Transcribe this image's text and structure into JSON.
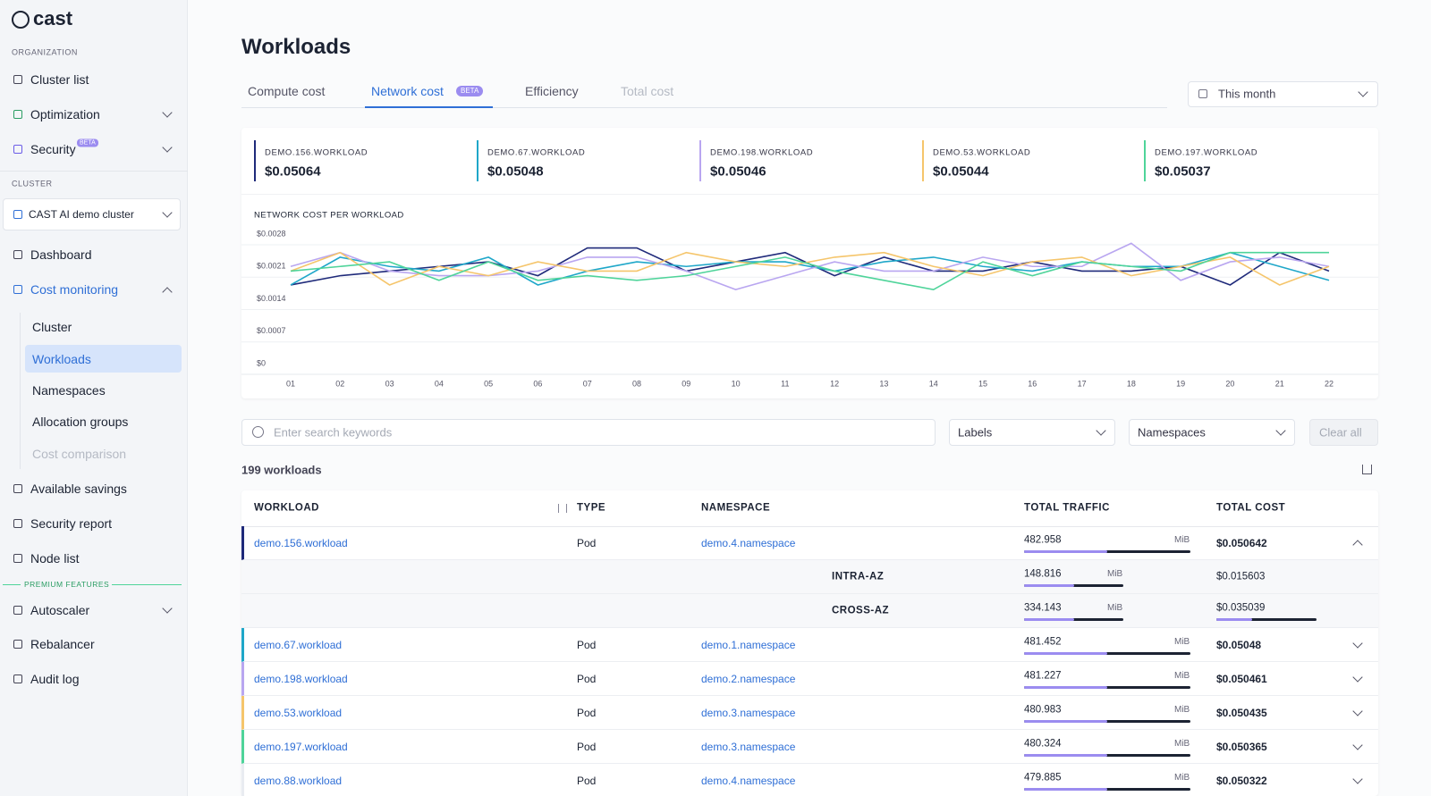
{
  "sidebar": {
    "logo": "cast",
    "organization_label": "ORGANIZATION",
    "organization_items": [
      {
        "label": "Cluster list"
      },
      {
        "label": "Optimization"
      },
      {
        "label": "Security",
        "badge": "BETA"
      }
    ],
    "cluster_label": "CLUSTER",
    "cluster_select": "CAST AI demo cluster",
    "nav_items": [
      {
        "label": "Dashboard"
      },
      {
        "label": "Cost monitoring",
        "children": [
          "Cluster",
          "Workloads",
          "Namespaces",
          "Allocation groups",
          "Cost comparison"
        ]
      },
      {
        "label": "Available savings"
      },
      {
        "label": "Security report"
      },
      {
        "label": "Node list"
      }
    ],
    "premium_label": "PREMIUM FEATURES",
    "premium_items": [
      "Autoscaler",
      "Rebalancer",
      "Audit log"
    ]
  },
  "header": {
    "title": "Workloads",
    "tabs": [
      {
        "label": "Compute cost"
      },
      {
        "label": "Network cost",
        "badge": "BETA"
      },
      {
        "label": "Efficiency"
      },
      {
        "label": "Total cost"
      }
    ],
    "date_range": "This month"
  },
  "cards": [
    {
      "name": "DEMO.156.WORKLOAD",
      "value": "$0.05064"
    },
    {
      "name": "DEMO.67.WORKLOAD",
      "value": "$0.05048"
    },
    {
      "name": "DEMO.198.WORKLOAD",
      "value": "$0.05046"
    },
    {
      "name": "DEMO.53.WORKLOAD",
      "value": "$0.05044"
    },
    {
      "name": "DEMO.197.WORKLOAD",
      "value": "$0.05037"
    }
  ],
  "chart": {
    "type": "line",
    "title": "NETWORK COST PER WORKLOAD",
    "categories": [
      "01",
      "02",
      "03",
      "04",
      "05",
      "06",
      "07",
      "08",
      "09",
      "10",
      "11",
      "12",
      "13",
      "14",
      "15",
      "16",
      "17",
      "18",
      "19",
      "20",
      "21",
      "22"
    ],
    "ylim": [
      0,
      0.0028
    ],
    "yticks": [
      {
        "value": 0,
        "label": "$0"
      },
      {
        "value": 0.0007,
        "label": "$0.0007"
      },
      {
        "value": 0.0014,
        "label": "$0.0014"
      },
      {
        "value": 0.0021,
        "label": "$0.0021"
      },
      {
        "value": 0.0028,
        "label": "$0.0028"
      }
    ],
    "grid": true,
    "series": [
      {
        "name": "demo.156.workload",
        "color": "#1f2a7a",
        "values": [
          0.0017,
          0.0019,
          0.002,
          0.0021,
          0.0022,
          0.0019,
          0.0025,
          0.0025,
          0.002,
          0.0022,
          0.0024,
          0.0019,
          0.0023,
          0.002,
          0.002,
          0.0022,
          0.002,
          0.002,
          0.0021,
          0.0017,
          0.0024,
          0.002
        ]
      },
      {
        "name": "demo.67.workload",
        "color": "#1fa7c9",
        "values": [
          0.0017,
          0.0023,
          0.0021,
          0.002,
          0.0023,
          0.0017,
          0.002,
          0.0022,
          0.0021,
          0.0022,
          0.0022,
          0.002,
          0.0022,
          0.0023,
          0.0021,
          0.002,
          0.0022,
          0.0021,
          0.0021,
          0.0024,
          0.0021,
          0.0018
        ]
      },
      {
        "name": "demo.198.workload",
        "color": "#b9a6f0",
        "values": [
          0.0021,
          0.0024,
          0.002,
          0.0019,
          0.0019,
          0.002,
          0.0023,
          0.0023,
          0.002,
          0.0016,
          0.0019,
          0.0022,
          0.002,
          0.002,
          0.0023,
          0.0021,
          0.0021,
          0.0026,
          0.0018,
          0.0022,
          0.0023,
          0.0021
        ]
      },
      {
        "name": "demo.53.workload",
        "color": "#f5c56b",
        "values": [
          0.002,
          0.0024,
          0.0017,
          0.0021,
          0.0019,
          0.0022,
          0.002,
          0.002,
          0.0024,
          0.0022,
          0.0021,
          0.0023,
          0.0024,
          0.0021,
          0.0019,
          0.0022,
          0.0023,
          0.0019,
          0.0021,
          0.0023,
          0.0017,
          0.0021
        ]
      },
      {
        "name": "demo.197.workload",
        "color": "#4fd49a",
        "values": [
          0.002,
          0.0021,
          0.0022,
          0.0018,
          0.0022,
          0.0018,
          0.0019,
          0.0018,
          0.0019,
          0.0021,
          0.0023,
          0.002,
          0.0018,
          0.0016,
          0.0022,
          0.0019,
          0.0022,
          0.0021,
          0.002,
          0.0024,
          0.0024,
          0.0024
        ]
      }
    ]
  },
  "filters": {
    "search_placeholder": "Enter search keywords",
    "labels": "Labels",
    "namespaces": "Namespaces",
    "clear": "Clear all"
  },
  "table": {
    "count": "199 workloads",
    "columns": [
      "WORKLOAD",
      "TYPE",
      "NAMESPACE",
      "TOTAL TRAFFIC",
      "TOTAL COST"
    ],
    "unit": "MiB",
    "rows": [
      {
        "workload": "demo.156.workload",
        "type": "Pod",
        "namespace": "demo.4.namespace",
        "traffic": "482.958",
        "cost": "$0.050642",
        "color": "#1f2a7a",
        "breakdown": [
          {
            "label": "INTRA-AZ",
            "traffic": "148.816",
            "cost": "$0.015603"
          },
          {
            "label": "CROSS-AZ",
            "traffic": "334.143",
            "cost": "$0.035039"
          }
        ]
      },
      {
        "workload": "demo.67.workload",
        "type": "Pod",
        "namespace": "demo.1.namespace",
        "traffic": "481.452",
        "cost": "$0.05048",
        "color": "#1fa7c9"
      },
      {
        "workload": "demo.198.workload",
        "type": "Pod",
        "namespace": "demo.2.namespace",
        "traffic": "481.227",
        "cost": "$0.050461",
        "color": "#b9a6f0"
      },
      {
        "workload": "demo.53.workload",
        "type": "Pod",
        "namespace": "demo.3.namespace",
        "traffic": "480.983",
        "cost": "$0.050435",
        "color": "#f5c56b"
      },
      {
        "workload": "demo.197.workload",
        "type": "Pod",
        "namespace": "demo.3.namespace",
        "traffic": "480.324",
        "cost": "$0.050365",
        "color": "#4fd49a"
      },
      {
        "workload": "demo.88.workload",
        "type": "Pod",
        "namespace": "demo.4.namespace",
        "traffic": "479.885",
        "cost": "$0.050322",
        "color": "#e9ecf1"
      }
    ]
  }
}
